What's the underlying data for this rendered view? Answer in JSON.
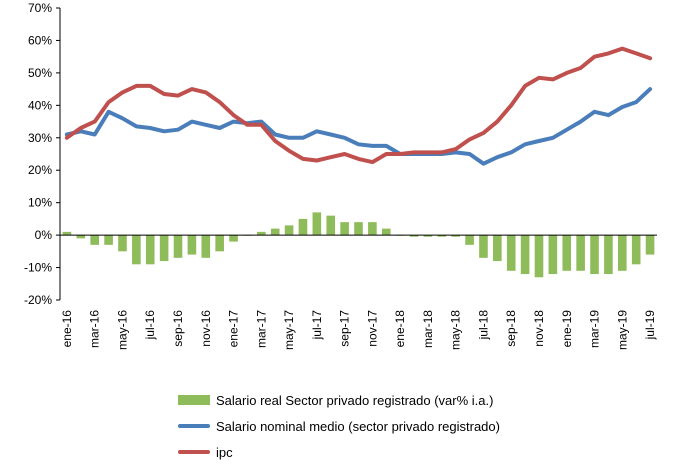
{
  "chart_data": {
    "type": "bar+line",
    "categories": [
      "ene-16",
      "feb-16",
      "mar-16",
      "abr-16",
      "may-16",
      "jun-16",
      "jul-16",
      "ago-16",
      "sep-16",
      "oct-16",
      "nov-16",
      "dic-16",
      "ene-17",
      "feb-17",
      "mar-17",
      "abr-17",
      "may-17",
      "jun-17",
      "jul-17",
      "ago-17",
      "sep-17",
      "oct-17",
      "nov-17",
      "dic-17",
      "ene-18",
      "feb-18",
      "mar-18",
      "abr-18",
      "may-18",
      "jun-18",
      "jul-18",
      "ago-18",
      "sep-18",
      "oct-18",
      "nov-18",
      "dic-18",
      "ene-19",
      "feb-19",
      "mar-19",
      "abr-19",
      "may-19",
      "jun-19",
      "jul-19"
    ],
    "tick_labels": [
      "ene-16",
      "mar-16",
      "may-16",
      "jul-16",
      "sep-16",
      "nov-16",
      "ene-17",
      "mar-17",
      "may-17",
      "jul-17",
      "sep-17",
      "nov-17",
      "ene-18",
      "mar-18",
      "may-18",
      "jul-18",
      "sep-18",
      "nov-18",
      "ene-19",
      "mar-19",
      "may-19",
      "jul-19"
    ],
    "y_tick_labels": [
      "-20%",
      "-10%",
      "0%",
      "10%",
      "20%",
      "30%",
      "40%",
      "50%",
      "60%",
      "70%"
    ],
    "ylim": [
      -20,
      70
    ],
    "grid": false,
    "legend_position": "bottom",
    "series": [
      {
        "name": "Salario real Sector privado registrado (var% i.a.)",
        "kind": "bar",
        "color": "#8fbc5a",
        "values": [
          1,
          -1,
          -3,
          -3,
          -5,
          -9,
          -9,
          -8,
          -7,
          -6,
          -7,
          -5,
          -2,
          0,
          1,
          2,
          3,
          5,
          7,
          6,
          4,
          4,
          4,
          2,
          0,
          -0.5,
          -0.5,
          -0.5,
          -0.5,
          -3,
          -7,
          -8,
          -11,
          -12,
          -13,
          -12,
          -11,
          -11,
          -12,
          -12,
          -11,
          -9,
          -6
        ]
      },
      {
        "name": "Salario nominal medio (sector privado registrado)",
        "kind": "line",
        "color": "#4a7ebb",
        "values": [
          31,
          32,
          31,
          38,
          36,
          33.5,
          33,
          32,
          32.5,
          35,
          34,
          33,
          35,
          34.5,
          35,
          31,
          30,
          30,
          32,
          31,
          30,
          28,
          27.5,
          27.5,
          25,
          25,
          25,
          25,
          25.5,
          25,
          22,
          24,
          25.5,
          28,
          29,
          30,
          32.5,
          35,
          38,
          37,
          39.5,
          41,
          45
        ]
      },
      {
        "name": "ipc",
        "kind": "line",
        "color": "#c0504d",
        "values": [
          30,
          33,
          35,
          41,
          44,
          46,
          46,
          43.5,
          43,
          45,
          44,
          41,
          37,
          34,
          34,
          29,
          26,
          23.5,
          23,
          24,
          25,
          23.5,
          22.5,
          25,
          25,
          25.5,
          25.5,
          25.5,
          26.5,
          29.5,
          31.5,
          35,
          40,
          46,
          48.5,
          48,
          50,
          51.5,
          55,
          56,
          57.5,
          56,
          54.5
        ]
      }
    ]
  }
}
